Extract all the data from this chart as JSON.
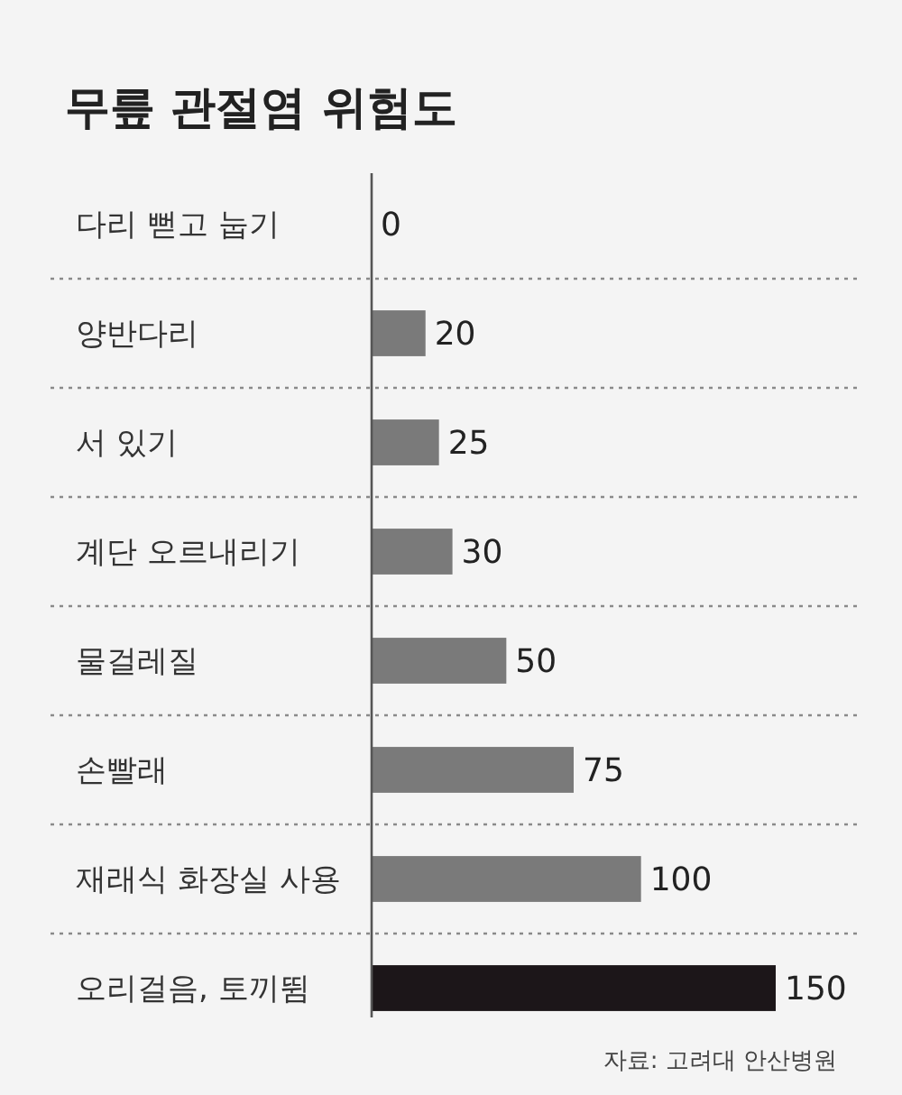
{
  "chart_data": {
    "type": "bar",
    "orientation": "horizontal",
    "title": "무릎 관절염 위험도",
    "categories": [
      "다리 뻗고 눕기",
      "양반다리",
      "서 있기",
      "계단 오르내리기",
      "물걸레질",
      "손빨래",
      "재래식 화장실 사용",
      "오리걸음, 토끼뜀"
    ],
    "values": [
      0,
      20,
      25,
      30,
      50,
      75,
      100,
      150
    ],
    "colors": [
      "#7a7a7a",
      "#7a7a7a",
      "#7a7a7a",
      "#7a7a7a",
      "#7a7a7a",
      "#7a7a7a",
      "#7a7a7a",
      "#1c1619"
    ],
    "xlim": [
      0,
      150
    ],
    "data_labels": true,
    "grid": "y",
    "tick_labels": "y",
    "annotations": [
      "자료: 고려대 안산병원"
    ]
  }
}
